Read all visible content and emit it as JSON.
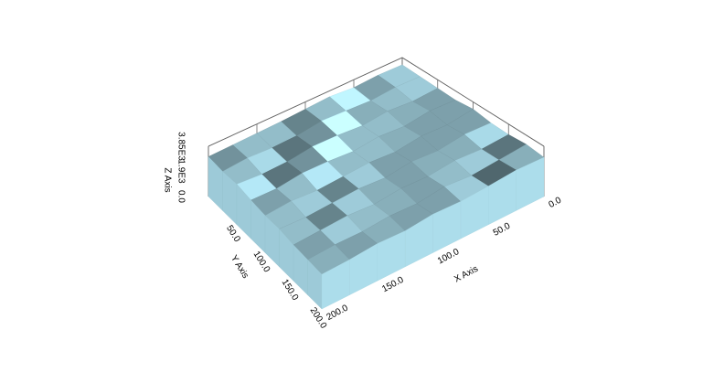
{
  "chart_data": {
    "type": "surface3d",
    "x_label": "X Axis",
    "y_label": "Y Axis",
    "z_label": "Z Axis",
    "xlim": [
      0,
      200
    ],
    "ylim": [
      0,
      200
    ],
    "zlim": [
      0,
      3850
    ],
    "xticks": [
      {
        "value": 0,
        "label": "0.0"
      },
      {
        "value": 50,
        "label": "50.0"
      },
      {
        "value": 100,
        "label": "100.0"
      },
      {
        "value": 150,
        "label": "150.0"
      },
      {
        "value": 200,
        "label": "200.0"
      }
    ],
    "yticks": [
      {
        "value": 50,
        "label": "50.0"
      },
      {
        "value": 100,
        "label": "100.0"
      },
      {
        "value": 150,
        "label": "150.0"
      },
      {
        "value": 200,
        "label": "200.0"
      }
    ],
    "zticks": [
      {
        "value": 0,
        "label": "0.0"
      },
      {
        "value": 1925,
        "label": "1.9E3"
      },
      {
        "value": 3850,
        "label": "3.85E3"
      }
    ],
    "x": [
      0,
      25,
      50,
      75,
      100,
      125,
      150,
      175,
      200
    ],
    "y": [
      0,
      25,
      50,
      75,
      100,
      125,
      150,
      175,
      200
    ],
    "color": "#8fb8c4",
    "z": [
      [
        3300,
        3350,
        3250,
        3400,
        3300,
        3200,
        3150,
        3100,
        3050
      ],
      [
        3250,
        3300,
        3150,
        3250,
        3350,
        3100,
        3050,
        3150,
        3000
      ],
      [
        3200,
        3100,
        3250,
        3050,
        3200,
        3250,
        3000,
        2950,
        3100
      ],
      [
        3150,
        3250,
        3000,
        3150,
        2950,
        3100,
        3150,
        2900,
        2950
      ],
      [
        3300,
        3050,
        3150,
        2900,
        3050,
        2950,
        2850,
        3000,
        2850
      ],
      [
        3100,
        3200,
        2950,
        3100,
        2850,
        3000,
        2900,
        2800,
        2900
      ],
      [
        3050,
        2950,
        3100,
        2900,
        3000,
        2800,
        2950,
        2850,
        2750
      ],
      [
        3150,
        3000,
        2850,
        3050,
        2800,
        2900,
        2750,
        2800,
        2700
      ],
      [
        3000,
        3100,
        2950,
        2850,
        2950,
        2750,
        2850,
        2700,
        2650
      ]
    ]
  }
}
